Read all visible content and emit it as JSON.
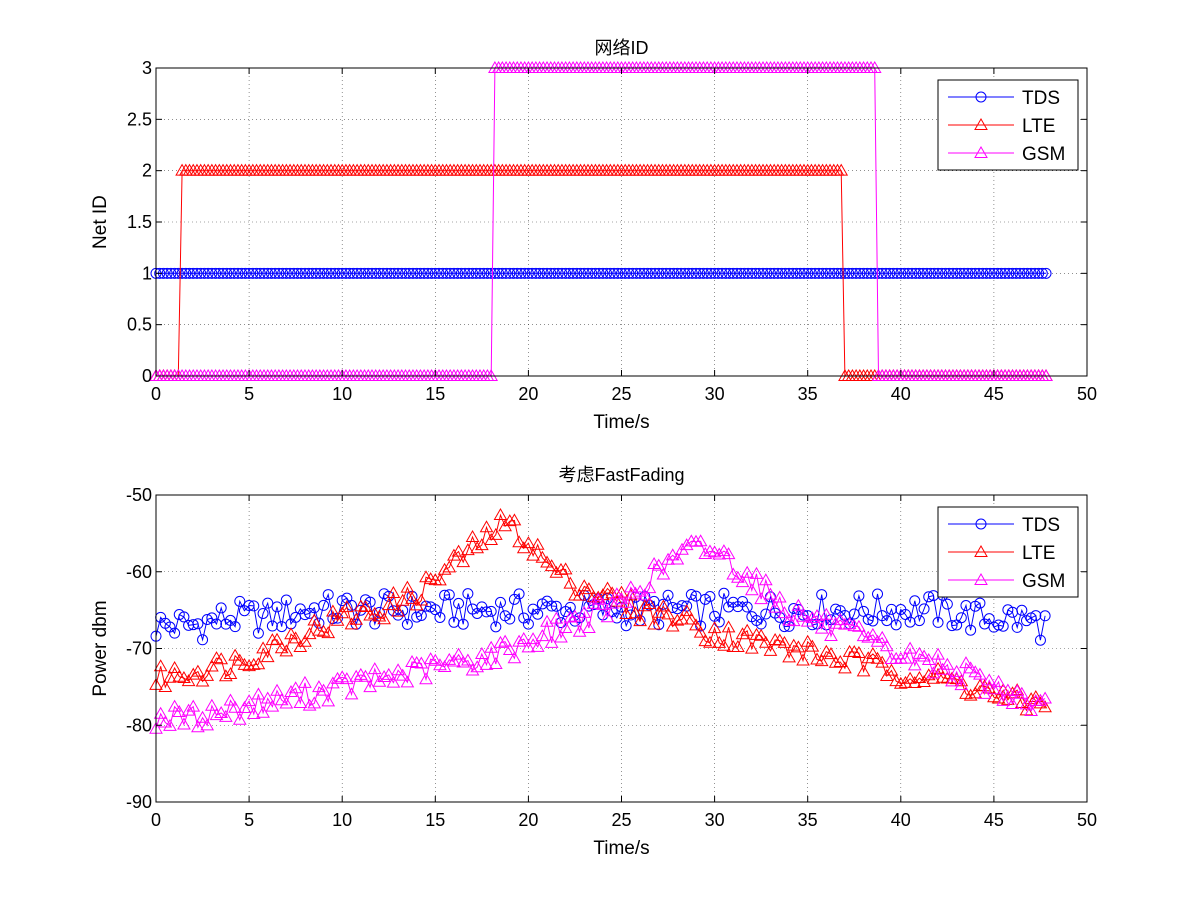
{
  "figure": {
    "background": "#ffffff"
  },
  "chart_data": [
    {
      "type": "line",
      "title": "网络ID",
      "xlabel": "Time/s",
      "ylabel": "Net ID",
      "xlim": [
        0,
        50
      ],
      "ylim": [
        0,
        3
      ],
      "xticks": [
        "0",
        "5",
        "10",
        "15",
        "20",
        "25",
        "30",
        "35",
        "40",
        "45",
        "50"
      ],
      "yticks": [
        "0",
        "0.5",
        "1",
        "1.5",
        "2",
        "2.5",
        "3"
      ],
      "grid": true,
      "legend_position": "top-right",
      "series": [
        {
          "name": "TDS",
          "color": "#0000ff",
          "marker": "circle",
          "segments": [
            {
              "from": 0,
              "to": 47.8,
              "value": 1
            }
          ]
        },
        {
          "name": "LTE",
          "color": "#ff0000",
          "marker": "triangle",
          "segments": [
            {
              "from": 0,
              "to": 1.2,
              "value": 0
            },
            {
              "from": 1.4,
              "to": 36.8,
              "value": 2
            },
            {
              "from": 37.0,
              "to": 47.8,
              "value": 0
            }
          ]
        },
        {
          "name": "GSM",
          "color": "#ff00ff",
          "marker": "triangle",
          "segments": [
            {
              "from": 0,
              "to": 18.0,
              "value": 0
            },
            {
              "from": 18.2,
              "to": 38.6,
              "value": 3
            },
            {
              "from": 38.8,
              "to": 47.8,
              "value": 0
            }
          ]
        }
      ]
    },
    {
      "type": "line",
      "title": "考虑FastFading",
      "xlabel": "Time/s",
      "ylabel": "Power dbm",
      "xlim": [
        0,
        50
      ],
      "ylim": [
        -90,
        -50
      ],
      "xticks": [
        "0",
        "5",
        "10",
        "15",
        "20",
        "25",
        "30",
        "35",
        "40",
        "45",
        "50"
      ],
      "yticks": [
        "-90",
        "-80",
        "-70",
        "-60",
        "-50"
      ],
      "grid": true,
      "legend_position": "top-right",
      "series": [
        {
          "name": "TDS",
          "color": "#0000ff",
          "marker": "circle",
          "x": [
            0,
            2,
            4,
            6,
            8,
            10,
            12,
            14,
            16,
            18,
            20,
            22,
            24,
            26,
            28,
            30,
            32,
            34,
            36,
            38,
            40,
            42,
            44,
            46,
            47.8
          ],
          "y": [
            -67,
            -67,
            -66,
            -66,
            -65,
            -65,
            -65,
            -65,
            -65,
            -65,
            -65,
            -65,
            -65,
            -65,
            -65,
            -65,
            -65,
            -65,
            -65,
            -65,
            -65,
            -65,
            -66,
            -66,
            -67
          ]
        },
        {
          "name": "LTE",
          "color": "#ff0000",
          "marker": "triangle",
          "x": [
            0,
            2,
            4,
            6,
            8,
            10,
            12,
            14,
            15,
            16,
            17,
            18,
            18.5,
            19,
            20,
            21,
            22,
            23,
            24,
            25,
            26,
            28,
            30,
            32,
            34,
            36,
            38,
            40,
            42,
            44,
            46,
            47.8
          ],
          "y": [
            -74,
            -73,
            -72,
            -70,
            -68,
            -66,
            -65,
            -63,
            -61,
            -59,
            -57,
            -55,
            -54,
            -54,
            -56,
            -59,
            -61,
            -62,
            -63,
            -64,
            -65,
            -66,
            -68,
            -69,
            -70,
            -71,
            -72,
            -73,
            -74,
            -75,
            -77,
            -77
          ]
        },
        {
          "name": "GSM",
          "color": "#ff00ff",
          "marker": "triangle",
          "x": [
            0,
            2,
            4,
            6,
            8,
            10,
            12,
            14,
            16,
            18,
            20,
            22,
            24,
            25,
            26,
            27,
            28,
            29,
            30,
            31,
            32,
            33,
            34,
            36,
            38,
            40,
            42,
            44,
            46,
            47.8
          ],
          "y": [
            -79,
            -79,
            -78,
            -77,
            -76,
            -75,
            -74,
            -73,
            -72,
            -71,
            -69,
            -67,
            -65,
            -64,
            -62,
            -60,
            -58,
            -57,
            -57,
            -59,
            -61,
            -63,
            -65,
            -67,
            -69,
            -71,
            -72,
            -74,
            -76,
            -78
          ]
        }
      ]
    }
  ]
}
